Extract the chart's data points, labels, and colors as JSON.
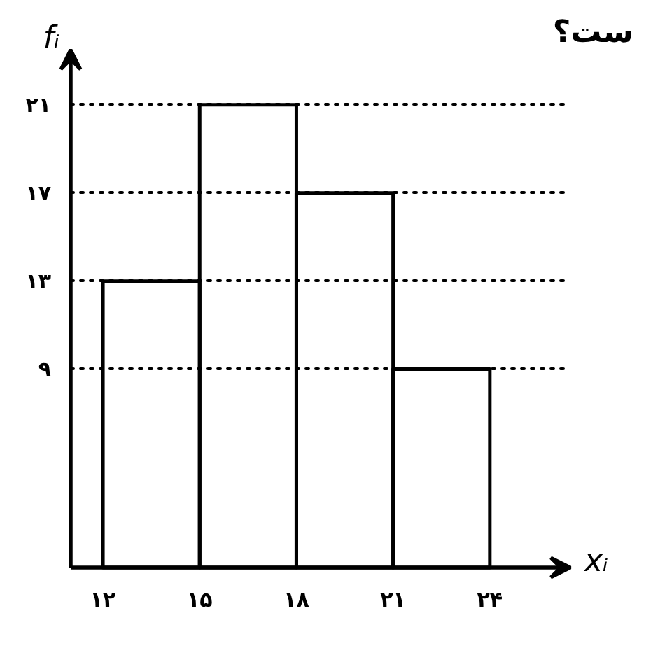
{
  "chart_data": {
    "type": "histogram",
    "bins": [
      12,
      15,
      18,
      21,
      24
    ],
    "values": [
      13,
      21,
      17,
      9
    ],
    "color": "#000000",
    "xlabel": "xᵢ",
    "ylabel": "fᵢ",
    "xlim": [
      11,
      26.5
    ],
    "ylim": [
      0,
      23.5
    ],
    "xticks": [
      {
        "value": 12,
        "label": "۱۲"
      },
      {
        "value": 15,
        "label": "۱۵"
      },
      {
        "value": 18,
        "label": "۱۸"
      },
      {
        "value": 21,
        "label": "۲۱"
      },
      {
        "value": 24,
        "label": "۲۴"
      }
    ],
    "yticks": [
      {
        "value": 9,
        "label": "۹"
      },
      {
        "value": 13,
        "label": "۱۳"
      },
      {
        "value": 17,
        "label": "۱۷"
      },
      {
        "value": 21,
        "label": "۲۱"
      }
    ],
    "grid": "y",
    "annotations": [
      "ست؟"
    ]
  }
}
